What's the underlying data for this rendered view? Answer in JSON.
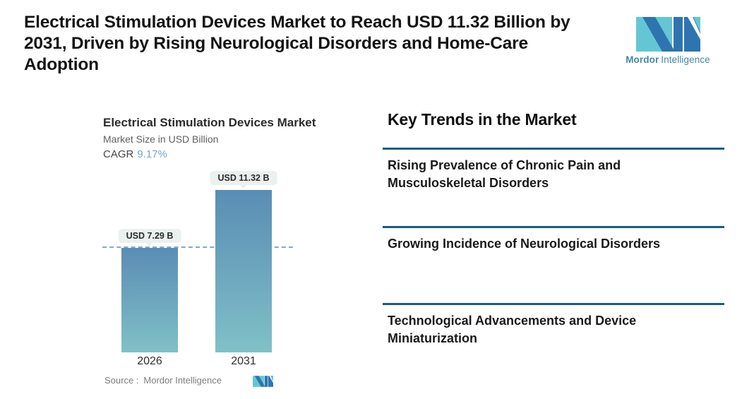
{
  "header": {
    "title": "Electrical Stimulation Devices Market to Reach USD 11.32 Billion by 2031, Driven by Rising Neurological Disorders and Home-Care Adoption",
    "title_lines": [
      "Electrical Stimulation Devices Market to Reach USD 11.32 Billion by",
      "2031, Driven by Rising Neurological Disorders and Home-Care",
      "Adoption"
    ],
    "logo": {
      "brand_bold": "Mordor",
      "brand_regular": "Intelligence"
    }
  },
  "chart": {
    "title": "Electrical Stimulation Devices Market",
    "subtitle": "Market Size in USD Billion",
    "cagr_label": "CAGR",
    "cagr_value": "9.17%",
    "source_label": "Source :",
    "source_value": "Mordor Intelligence",
    "bars": [
      {
        "year": "2026",
        "label": "USD 7.29 B",
        "value": 7.29
      },
      {
        "year": "2031",
        "label": "USD 11.32 B",
        "value": 11.32
      }
    ]
  },
  "chart_data": {
    "type": "bar",
    "categories": [
      "2026",
      "2031"
    ],
    "values": [
      7.29,
      11.32
    ],
    "series_name": "Market Size",
    "unit": "USD Billion",
    "data_labels": [
      "USD 7.29 B",
      "USD 11.32 B"
    ],
    "title": "Electrical Stimulation Devices Market",
    "subtitle": "Market Size in USD Billion",
    "cagr": "9.17%",
    "xlabel": "",
    "ylabel": "Market Size in USD Billion",
    "ylim": [
      0,
      11.32
    ],
    "grid": false,
    "legend": "none",
    "annotations": [
      "horizontal dashed reference line at 2026 value (7.29)"
    ],
    "source": "Source : Mordor Intelligence"
  },
  "trends": {
    "heading": "Key Trends in the Market",
    "items": [
      "Rising Prevalence of Chronic Pain and Musculoskeletal Disorders",
      "Growing Incidence of Neurological Disorders",
      "Technological Advancements and Device Miniaturization"
    ]
  },
  "colors": {
    "accent_separator": "#1A5C7F",
    "bar_gradient_top": "#5A8DB4",
    "bar_gradient_bottom": "#80C1C7",
    "dashed_line": "#80A9CE",
    "cagr_value": "#74A6CC",
    "pill_background": "#EAF1EF",
    "logo_teal": "#64C6D5",
    "logo_blue": "#2E75B0",
    "logo_text": "#4387A8"
  }
}
